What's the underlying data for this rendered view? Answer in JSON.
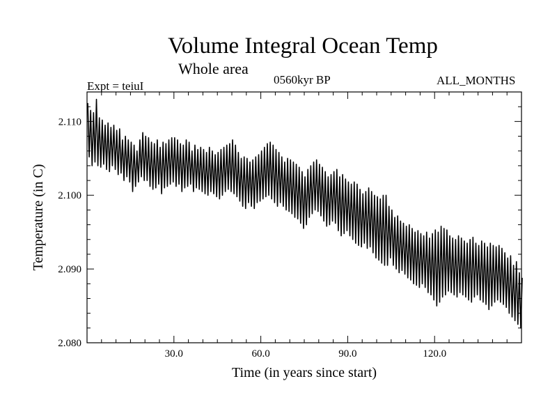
{
  "header": {
    "title": "Volume Integral Ocean Temp",
    "subtitle": "Whole area",
    "experiment": "Expt = teiuI",
    "period": "0560kyr BP",
    "months": "ALL_MONTHS"
  },
  "chart_data": {
    "type": "line",
    "title": "Volume Integral Ocean Temp",
    "subtitle": "Whole area",
    "xlabel": "Time (in years since start)",
    "ylabel": "Temperature (in C)",
    "xlim": [
      0,
      150
    ],
    "ylim": [
      2.08,
      2.114
    ],
    "x_ticks": [
      30,
      60,
      90,
      120
    ],
    "x_tick_labels": [
      "30.0",
      "60.0",
      "90.0",
      "120.0"
    ],
    "y_ticks": [
      2.08,
      2.09,
      2.1,
      2.11
    ],
    "y_tick_labels": [
      "2.080",
      "2.090",
      "2.100",
      "2.110"
    ],
    "grid": false,
    "series": [
      {
        "name": "volume integral ocean temperature",
        "x_start": 0,
        "x_step": 1,
        "annual_max": [
          2.1125,
          2.1115,
          2.1112,
          2.113,
          2.1105,
          2.1102,
          2.1095,
          2.1098,
          2.1092,
          2.1095,
          2.1088,
          2.109,
          2.1075,
          2.108,
          2.1075,
          2.1072,
          2.1068,
          2.106,
          2.1075,
          2.1085,
          2.108,
          2.1078,
          2.1072,
          2.107,
          2.1075,
          2.1065,
          2.1072,
          2.107,
          2.1075,
          2.1078,
          2.1078,
          2.1075,
          2.107,
          2.1068,
          2.1075,
          2.1072,
          2.106,
          2.1068,
          2.1062,
          2.1065,
          2.1062,
          2.1058,
          2.1065,
          2.106,
          2.1055,
          2.1058,
          2.1062,
          2.1065,
          2.1068,
          2.107,
          2.1075,
          2.1068,
          2.1058,
          2.105,
          2.1052,
          2.105,
          2.1045,
          2.1048,
          2.1052,
          2.1055,
          2.106,
          2.1065,
          2.107,
          2.1072,
          2.1068,
          2.1062,
          2.1058,
          2.1052,
          2.1045,
          2.105,
          2.1048,
          2.1045,
          2.1042,
          2.1038,
          2.1032,
          2.1025,
          2.1035,
          2.104,
          2.1045,
          2.1048,
          2.1042,
          2.1038,
          2.1032,
          2.1025,
          2.1028,
          2.1032,
          2.1035,
          2.1025,
          2.1028,
          2.1022,
          2.1018,
          2.1015,
          2.1018,
          2.1015,
          2.1008,
          2.1002,
          2.1005,
          2.101,
          2.1005,
          2.1,
          2.0998,
          2.0995,
          2.1,
          2.1,
          2.0985,
          2.098,
          2.097,
          2.0972,
          2.0965,
          2.0962,
          2.0958,
          2.096,
          2.0955,
          2.095,
          2.0952,
          2.0948,
          2.0945,
          2.095,
          2.0942,
          2.0948,
          2.0953,
          2.095,
          2.0958,
          2.0955,
          2.0953,
          2.0945,
          2.0942,
          2.094,
          2.0945,
          2.0942,
          2.0938,
          2.0935,
          2.094,
          2.0943,
          2.0935,
          2.0932,
          2.0938,
          2.0935,
          2.093,
          2.0935,
          2.0932,
          2.093,
          2.0932,
          2.0928,
          2.0922,
          2.0915,
          2.0918,
          2.0905,
          2.091,
          2.0895,
          2.0888
        ],
        "annual_min": [
          2.1052,
          2.104,
          2.1045,
          2.104,
          2.1038,
          2.1042,
          2.1035,
          2.1032,
          2.104,
          2.1035,
          2.1028,
          2.103,
          2.102,
          2.1025,
          2.1018,
          2.1005,
          2.1012,
          2.1018,
          2.1025,
          2.102,
          2.102,
          2.1012,
          2.1008,
          2.101,
          2.1015,
          2.1002,
          2.101,
          2.1012,
          2.1015,
          2.1018,
          2.1012,
          2.1015,
          2.1005,
          2.101,
          2.1012,
          2.1015,
          2.1005,
          2.101,
          2.1008,
          2.1005,
          2.1002,
          2.1,
          2.1005,
          2.1002,
          2.0998,
          2.0995,
          2.1,
          2.1005,
          2.1008,
          2.1005,
          2.1002,
          2.0998,
          2.0992,
          2.0985,
          2.0982,
          2.099,
          2.0985,
          2.0982,
          2.099,
          2.0992,
          2.0995,
          2.0998,
          2.1,
          2.0995,
          2.099,
          2.0985,
          2.099,
          2.0985,
          2.098,
          2.0978,
          2.0975,
          2.097,
          2.0968,
          2.0962,
          2.0955,
          2.096,
          2.097,
          2.0975,
          2.098,
          2.0978,
          2.0972,
          2.0965,
          2.0958,
          2.096,
          2.0965,
          2.0962,
          2.0952,
          2.0945,
          2.0948,
          2.0952,
          2.0945,
          2.094,
          2.0935,
          2.0932,
          2.093,
          2.0935,
          2.0928,
          2.093,
          2.0922,
          2.0915,
          2.0912,
          2.0908,
          2.0905,
          2.0905,
          2.0915,
          2.0905,
          2.09,
          2.0895,
          2.0898,
          2.0893,
          2.0888,
          2.0885,
          2.088,
          2.0878,
          2.0875,
          2.088,
          2.0875,
          2.0868,
          2.0865,
          2.0858,
          2.085,
          2.0855,
          2.0862,
          2.0865,
          2.087,
          2.0868,
          2.0865,
          2.0862,
          2.0868,
          2.0865,
          2.0862,
          2.0858,
          2.0855,
          2.0862,
          2.0865,
          2.0858,
          2.0855,
          2.0852,
          2.0845,
          2.085,
          2.0855,
          2.0858,
          2.0855,
          2.0852,
          2.0848,
          2.084,
          2.0835,
          2.083,
          2.0825,
          2.082
        ]
      }
    ]
  }
}
